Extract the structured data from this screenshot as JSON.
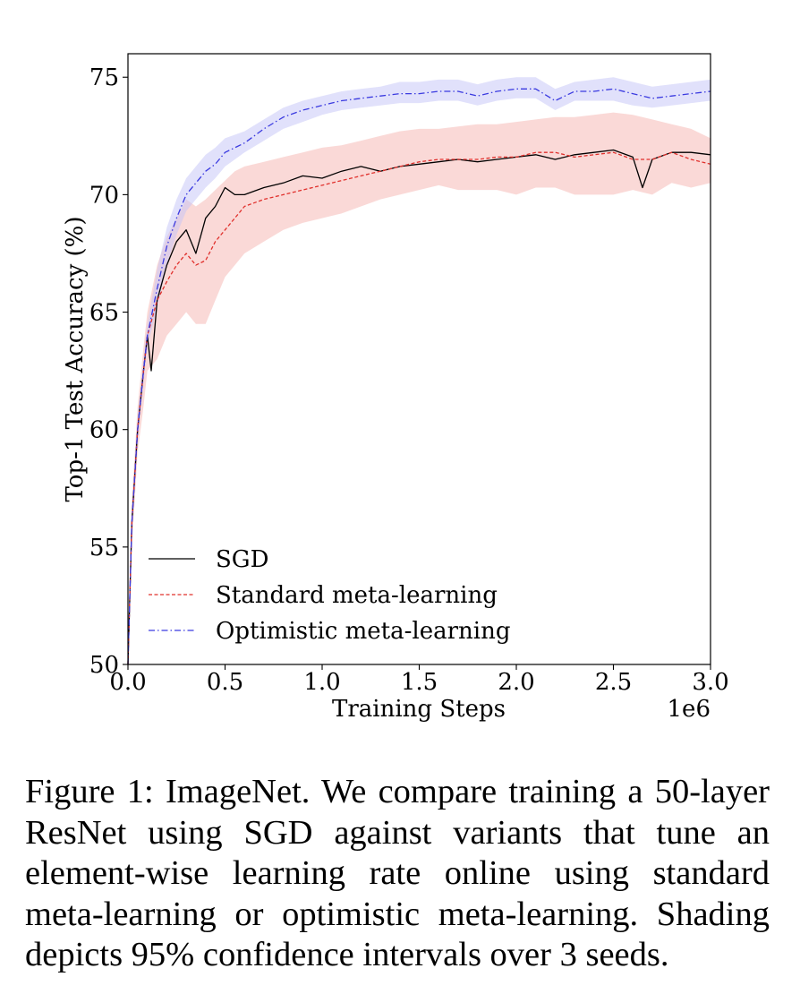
{
  "chart_data": {
    "type": "line",
    "title": "",
    "xlabel": "Training Steps",
    "ylabel": "Top-1 Test Accuracy (%)",
    "x_offset_label": "1e6",
    "xlim": [
      0,
      3.0
    ],
    "ylim": [
      50,
      76
    ],
    "xticks": [
      0.0,
      0.5,
      1.0,
      1.5,
      2.0,
      2.5,
      3.0
    ],
    "xtick_labels": [
      "0.0",
      "0.5",
      "1.0",
      "1.5",
      "2.0",
      "2.5",
      "3.0"
    ],
    "yticks": [
      50,
      55,
      60,
      65,
      70,
      75
    ],
    "ytick_labels": [
      "50",
      "55",
      "60",
      "65",
      "70",
      "75"
    ],
    "grid": false,
    "legend_position": "bottom-left",
    "series": [
      {
        "name": "SGD",
        "color": "#000000",
        "style": "solid",
        "shade_color": null,
        "x": [
          0.0,
          0.02,
          0.05,
          0.08,
          0.1,
          0.12,
          0.15,
          0.2,
          0.25,
          0.3,
          0.35,
          0.4,
          0.45,
          0.5,
          0.55,
          0.6,
          0.7,
          0.8,
          0.9,
          1.0,
          1.1,
          1.2,
          1.3,
          1.4,
          1.5,
          1.6,
          1.7,
          1.8,
          1.9,
          2.0,
          2.1,
          2.2,
          2.3,
          2.4,
          2.5,
          2.6,
          2.65,
          2.7,
          2.8,
          2.9,
          3.0
        ],
        "y": [
          50.0,
          56.0,
          60.0,
          62.5,
          64.0,
          62.5,
          65.5,
          67.0,
          68.0,
          68.5,
          67.5,
          69.0,
          69.5,
          70.3,
          70.0,
          70.0,
          70.3,
          70.5,
          70.8,
          70.7,
          71.0,
          71.2,
          71.0,
          71.2,
          71.3,
          71.4,
          71.5,
          71.4,
          71.5,
          71.6,
          71.7,
          71.5,
          71.7,
          71.8,
          71.9,
          71.6,
          70.3,
          71.5,
          71.8,
          71.8,
          71.7
        ],
        "ci_lower": null,
        "ci_upper": null
      },
      {
        "name": "Standard meta-learning",
        "color": "#e0302c",
        "style": "dashed",
        "shade_color": "#f6b4b0",
        "x": [
          0.0,
          0.02,
          0.05,
          0.08,
          0.1,
          0.15,
          0.2,
          0.25,
          0.3,
          0.35,
          0.4,
          0.45,
          0.5,
          0.55,
          0.6,
          0.7,
          0.8,
          0.9,
          1.0,
          1.1,
          1.2,
          1.3,
          1.4,
          1.5,
          1.6,
          1.7,
          1.8,
          1.9,
          2.0,
          2.1,
          2.2,
          2.3,
          2.4,
          2.5,
          2.6,
          2.7,
          2.8,
          2.9,
          3.0
        ],
        "y": [
          50.0,
          56.0,
          60.0,
          62.5,
          64.0,
          65.5,
          66.3,
          67.0,
          67.5,
          67.0,
          67.2,
          68.0,
          68.5,
          69.0,
          69.5,
          69.8,
          70.0,
          70.2,
          70.4,
          70.6,
          70.8,
          71.0,
          71.2,
          71.4,
          71.5,
          71.5,
          71.5,
          71.6,
          71.6,
          71.8,
          71.8,
          71.6,
          71.7,
          71.8,
          71.5,
          71.5,
          71.8,
          71.5,
          71.3
        ],
        "ci_lower": [
          50.0,
          55.0,
          59.0,
          61.0,
          62.5,
          63.0,
          64.0,
          64.5,
          65.0,
          64.5,
          64.5,
          65.5,
          66.5,
          67.0,
          67.5,
          68.0,
          68.5,
          68.8,
          69.0,
          69.2,
          69.5,
          69.8,
          70.0,
          70.2,
          70.4,
          70.2,
          70.2,
          70.2,
          70.0,
          70.3,
          70.3,
          70.0,
          70.0,
          70.0,
          70.2,
          70.0,
          70.5,
          70.3,
          70.5
        ],
        "ci_upper": [
          50.0,
          57.0,
          61.0,
          63.5,
          65.0,
          67.0,
          68.2,
          69.0,
          69.8,
          69.5,
          69.8,
          70.2,
          70.6,
          71.0,
          71.2,
          71.4,
          71.6,
          71.8,
          72.0,
          72.1,
          72.3,
          72.5,
          72.7,
          72.8,
          72.8,
          72.9,
          73.0,
          73.0,
          73.1,
          73.2,
          73.3,
          73.3,
          73.4,
          73.5,
          73.4,
          73.2,
          73.0,
          72.8,
          72.4
        ]
      },
      {
        "name": "Optimistic meta-learning",
        "color": "#3a3ae0",
        "style": "dashdot",
        "shade_color": "#c3c3f7",
        "x": [
          0.0,
          0.02,
          0.05,
          0.08,
          0.1,
          0.15,
          0.2,
          0.25,
          0.3,
          0.35,
          0.4,
          0.45,
          0.5,
          0.6,
          0.7,
          0.8,
          0.9,
          1.0,
          1.1,
          1.2,
          1.3,
          1.4,
          1.5,
          1.6,
          1.7,
          1.8,
          1.9,
          2.0,
          2.1,
          2.2,
          2.3,
          2.4,
          2.5,
          2.6,
          2.7,
          2.8,
          2.9,
          3.0
        ],
        "y": [
          50.0,
          56.0,
          60.0,
          62.5,
          64.0,
          66.0,
          67.8,
          69.0,
          70.0,
          70.5,
          71.0,
          71.3,
          71.8,
          72.2,
          72.8,
          73.3,
          73.6,
          73.8,
          74.0,
          74.1,
          74.2,
          74.3,
          74.3,
          74.4,
          74.4,
          74.2,
          74.4,
          74.5,
          74.5,
          74.0,
          74.4,
          74.4,
          74.5,
          74.3,
          74.1,
          74.2,
          74.3,
          74.4
        ],
        "ci_lower": [
          50.0,
          55.5,
          59.5,
          62.0,
          63.5,
          65.2,
          67.0,
          68.3,
          69.3,
          69.8,
          70.3,
          70.7,
          71.2,
          71.8,
          72.3,
          72.8,
          73.1,
          73.4,
          73.6,
          73.7,
          73.8,
          73.9,
          73.9,
          74.0,
          74.0,
          73.8,
          74.0,
          74.1,
          74.1,
          73.6,
          74.0,
          74.0,
          74.0,
          73.8,
          73.7,
          73.8,
          73.9,
          74.0
        ],
        "ci_upper": [
          50.0,
          56.5,
          60.5,
          63.0,
          64.5,
          66.8,
          68.6,
          69.8,
          70.7,
          71.2,
          71.7,
          72.0,
          72.4,
          72.7,
          73.2,
          73.7,
          74.0,
          74.2,
          74.4,
          74.5,
          74.6,
          74.8,
          74.8,
          74.9,
          74.9,
          74.7,
          74.9,
          75.0,
          75.0,
          74.5,
          74.8,
          74.9,
          75.0,
          74.8,
          74.6,
          74.7,
          74.8,
          74.9
        ]
      }
    ]
  },
  "caption": "Figure 1: ImageNet. We compare training a 50-layer ResNet using SGD against variants that tune an element-wise learning rate online using standard meta-learning or optimistic meta-learning. Shading depicts 95% confidence intervals over 3 seeds."
}
